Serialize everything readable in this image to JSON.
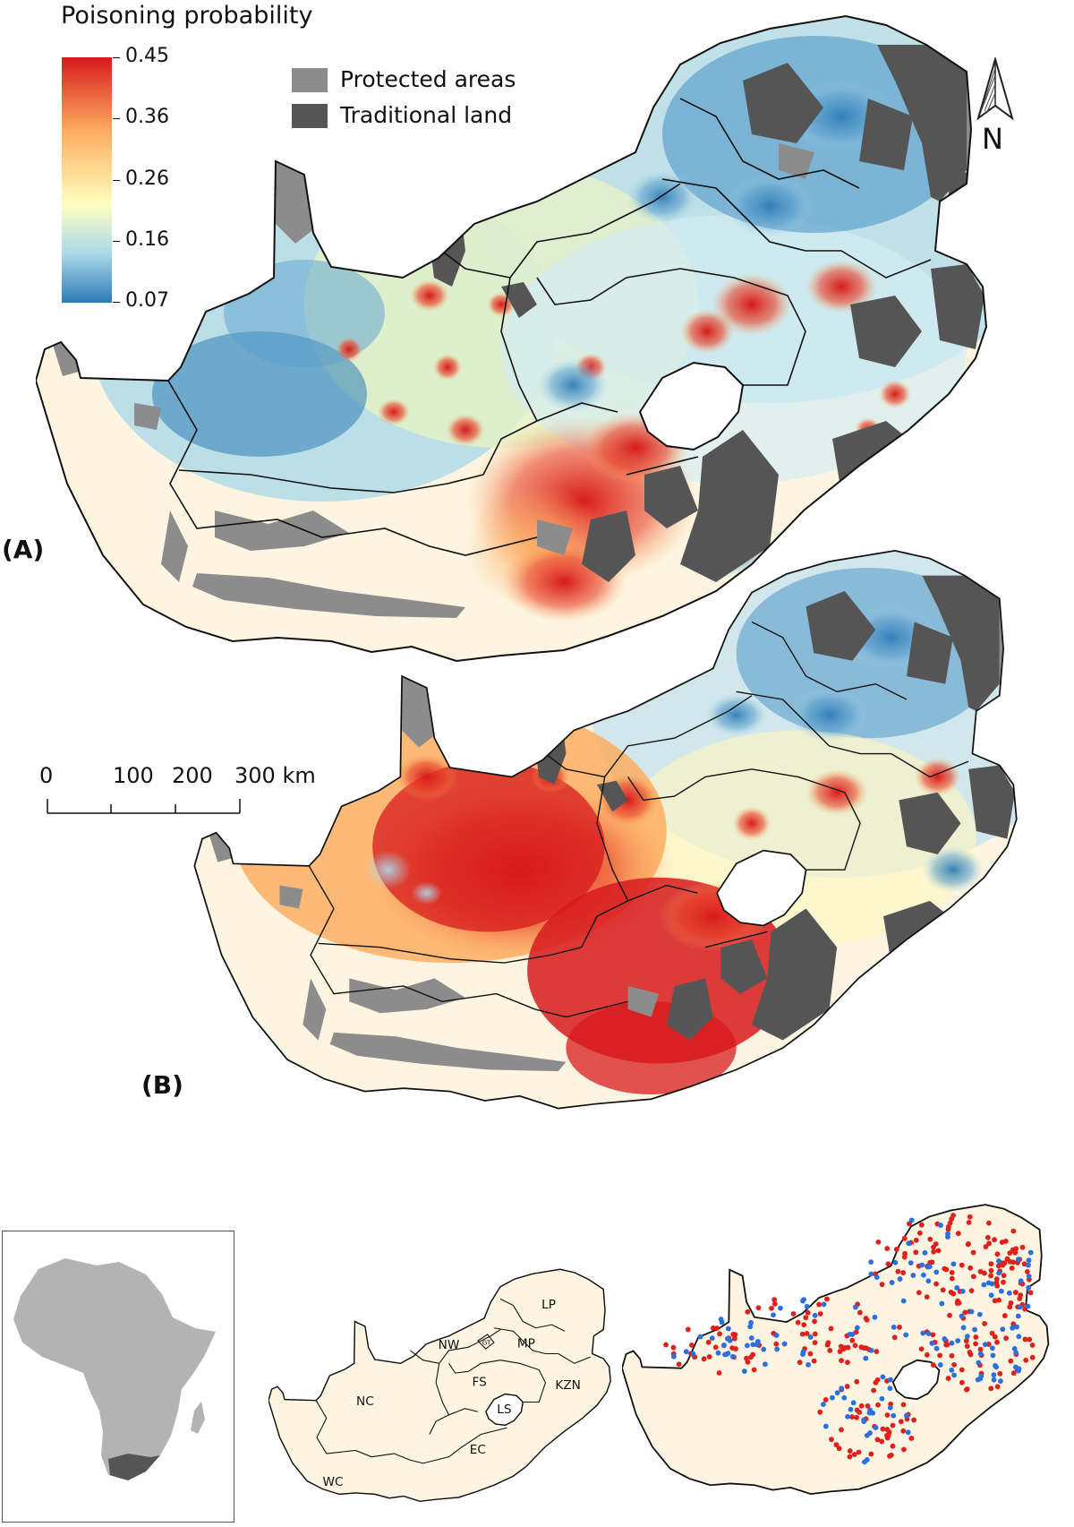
{
  "legend": {
    "title": "Poisoning probability",
    "ticks": [
      "0.45",
      "0.36",
      "0.26",
      "0.16",
      "0.07"
    ],
    "colors": [
      "#d7191c",
      "#fdae61",
      "#ffffbf",
      "#abd9e9",
      "#2c7bb6"
    ]
  },
  "land_legend": {
    "items": [
      {
        "label": "Protected areas",
        "color": "#8c8c8c"
      },
      {
        "label": "Traditional land",
        "color": "#555555"
      }
    ]
  },
  "north_arrow": {
    "label": "N",
    "icon": "north-arrow-icon"
  },
  "scale_bar": {
    "labels": [
      "0",
      "100",
      "200",
      "300 km"
    ]
  },
  "panels": {
    "a": {
      "label": "(A)"
    },
    "b": {
      "label": "(B)"
    }
  },
  "provinces": {
    "LP": "LP",
    "NW": "NW",
    "GT": "GT",
    "MP": "MP",
    "FS": "FS",
    "KZN": "KZN",
    "NC": "NC",
    "LS": "LS",
    "EC": "EC",
    "WC": "WC"
  },
  "colors": {
    "land_bg": "#fdf5e1",
    "outline": "#111111",
    "protected": "#8c8c8c",
    "traditional": "#555555",
    "africa": "#b3b3b3",
    "sa_highlight": "#555555",
    "point_red": "#e0201b",
    "point_blue": "#2b6fe0"
  }
}
